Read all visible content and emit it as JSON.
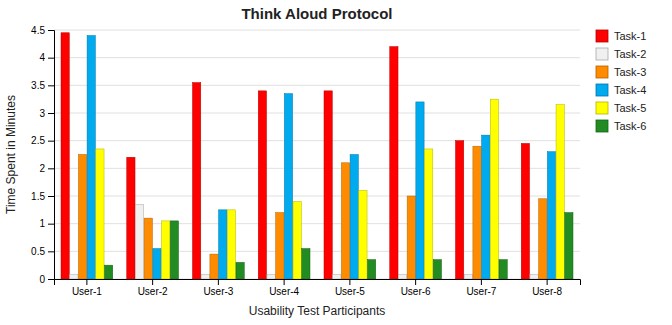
{
  "chart_data": {
    "type": "bar",
    "title": "Think Aloud Protocol",
    "xlabel": "Usability Test Participants",
    "ylabel": "Time Spent in Minutes",
    "categories": [
      "User-1",
      "User-2",
      "User-3",
      "User-4",
      "User-5",
      "User-6",
      "User-7",
      "User-8"
    ],
    "series": [
      {
        "name": "Task-1",
        "color": "#ff0000",
        "values": [
          4.45,
          2.2,
          3.55,
          3.4,
          3.4,
          4.2,
          2.5,
          2.45
        ]
      },
      {
        "name": "Task-2",
        "color": "#f0f0f0",
        "values": [
          0.08,
          1.35,
          0.08,
          0.08,
          0.08,
          0.08,
          0.08,
          0.08
        ]
      },
      {
        "name": "Task-3",
        "color": "#ff8c00",
        "values": [
          2.25,
          1.1,
          0.45,
          1.2,
          2.1,
          1.5,
          2.4,
          1.45
        ]
      },
      {
        "name": "Task-4",
        "color": "#00aaee",
        "values": [
          4.4,
          0.55,
          1.25,
          3.35,
          2.25,
          3.2,
          2.6,
          2.3
        ]
      },
      {
        "name": "Task-5",
        "color": "#ffff00",
        "values": [
          2.35,
          1.05,
          1.25,
          1.4,
          1.6,
          2.35,
          3.25,
          3.15
        ]
      },
      {
        "name": "Task-6",
        "color": "#228B22",
        "values": [
          0.25,
          1.05,
          0.3,
          0.55,
          0.35,
          0.35,
          0.35,
          1.2
        ]
      }
    ],
    "ylim": [
      0,
      4.5
    ],
    "yticks": [
      0,
      0.5,
      1,
      1.5,
      2,
      2.5,
      3,
      3.5,
      4,
      4.5
    ],
    "grid": true,
    "legend": "right"
  }
}
